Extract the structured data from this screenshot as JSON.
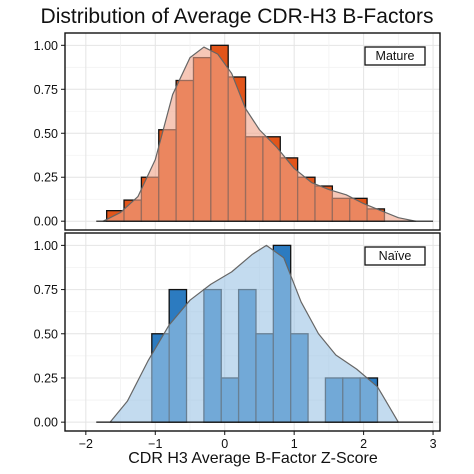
{
  "chart_data": {
    "type": "bar",
    "title": "Distribution of Average CDR-H3 B-Factors",
    "xlabel": "CDR H3 Average B-Factor Z-Score",
    "ylabel": "",
    "xlim": [
      -2.3,
      3.1
    ],
    "ylim": [
      0,
      1.0
    ],
    "x_ticks": [
      -2,
      -1,
      0,
      1,
      2,
      3
    ],
    "x_tick_labels": [
      "−2",
      "−1",
      "0",
      "1",
      "2",
      "3"
    ],
    "y_ticks": [
      0,
      0.25,
      0.5,
      0.75,
      1.0
    ],
    "y_tick_labels": [
      "0.00",
      "0.25",
      "0.50",
      "0.75",
      "1.00"
    ],
    "grid": true,
    "panels": [
      {
        "label": "Mature",
        "legend_position": "top-right",
        "bar_color": "#e2551a",
        "density_color": "#f0a58a",
        "bin_width": 0.25,
        "bars": [
          {
            "x0": -1.7,
            "value": 0.06
          },
          {
            "x0": -1.45,
            "value": 0.12
          },
          {
            "x0": -1.2,
            "value": 0.25
          },
          {
            "x0": -0.95,
            "value": 0.52
          },
          {
            "x0": -0.7,
            "value": 0.8
          },
          {
            "x0": -0.45,
            "value": 0.93
          },
          {
            "x0": -0.2,
            "value": 1.0
          },
          {
            "x0": 0.05,
            "value": 0.82
          },
          {
            "x0": 0.3,
            "value": 0.48
          },
          {
            "x0": 0.55,
            "value": 0.48
          },
          {
            "x0": 0.8,
            "value": 0.36
          },
          {
            "x0": 1.05,
            "value": 0.25
          },
          {
            "x0": 1.3,
            "value": 0.2
          },
          {
            "x0": 1.55,
            "value": 0.13
          },
          {
            "x0": 1.8,
            "value": 0.13
          },
          {
            "x0": 2.05,
            "value": 0.07
          }
        ],
        "density": [
          {
            "x": -1.75,
            "y": 0.0
          },
          {
            "x": -1.5,
            "y": 0.05
          },
          {
            "x": -1.25,
            "y": 0.14
          },
          {
            "x": -1.0,
            "y": 0.35
          },
          {
            "x": -0.75,
            "y": 0.72
          },
          {
            "x": -0.5,
            "y": 0.93
          },
          {
            "x": -0.3,
            "y": 0.99
          },
          {
            "x": -0.1,
            "y": 0.95
          },
          {
            "x": 0.1,
            "y": 0.84
          },
          {
            "x": 0.3,
            "y": 0.64
          },
          {
            "x": 0.5,
            "y": 0.52
          },
          {
            "x": 0.75,
            "y": 0.42
          },
          {
            "x": 1.0,
            "y": 0.3
          },
          {
            "x": 1.25,
            "y": 0.22
          },
          {
            "x": 1.5,
            "y": 0.18
          },
          {
            "x": 1.75,
            "y": 0.15
          },
          {
            "x": 2.0,
            "y": 0.1
          },
          {
            "x": 2.25,
            "y": 0.06
          },
          {
            "x": 2.5,
            "y": 0.02
          },
          {
            "x": 2.75,
            "y": 0.0
          }
        ]
      },
      {
        "label": "Naïve",
        "legend_position": "top-right",
        "bar_color": "#2c7bc0",
        "density_color": "#9ec5e5",
        "bin_width": 0.25,
        "bars": [
          {
            "x0": -1.05,
            "value": 0.5
          },
          {
            "x0": -0.8,
            "value": 0.75
          },
          {
            "x0": -0.55,
            "value": 0.0
          },
          {
            "x0": -0.3,
            "value": 0.75
          },
          {
            "x0": -0.05,
            "value": 0.25
          },
          {
            "x0": 0.2,
            "value": 0.75
          },
          {
            "x0": 0.45,
            "value": 0.5
          },
          {
            "x0": 0.7,
            "value": 1.0
          },
          {
            "x0": 0.95,
            "value": 0.5
          },
          {
            "x0": 1.2,
            "value": 0.0
          },
          {
            "x0": 1.45,
            "value": 0.25
          },
          {
            "x0": 1.7,
            "value": 0.25
          },
          {
            "x0": 1.95,
            "value": 0.25
          }
        ],
        "density": [
          {
            "x": -1.65,
            "y": 0.0
          },
          {
            "x": -1.4,
            "y": 0.12
          },
          {
            "x": -1.1,
            "y": 0.35
          },
          {
            "x": -0.8,
            "y": 0.55
          },
          {
            "x": -0.5,
            "y": 0.69
          },
          {
            "x": -0.2,
            "y": 0.78
          },
          {
            "x": 0.1,
            "y": 0.85
          },
          {
            "x": 0.4,
            "y": 0.95
          },
          {
            "x": 0.6,
            "y": 1.0
          },
          {
            "x": 0.85,
            "y": 0.93
          },
          {
            "x": 1.1,
            "y": 0.68
          },
          {
            "x": 1.35,
            "y": 0.5
          },
          {
            "x": 1.6,
            "y": 0.38
          },
          {
            "x": 1.9,
            "y": 0.3
          },
          {
            "x": 2.2,
            "y": 0.2
          },
          {
            "x": 2.5,
            "y": 0.0
          }
        ]
      }
    ]
  }
}
